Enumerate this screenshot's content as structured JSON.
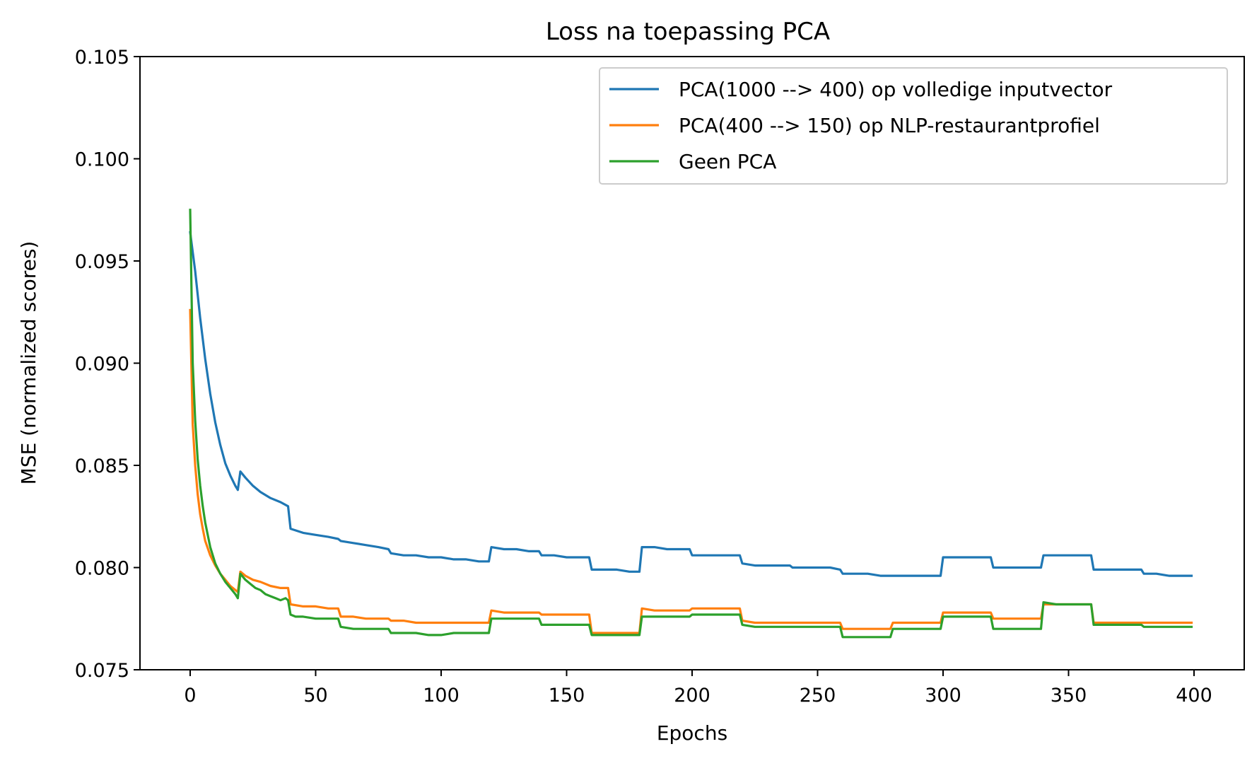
{
  "chart_data": {
    "type": "line",
    "title": "Loss na toepassing PCA",
    "xlabel": "Epochs",
    "ylabel": "MSE (normalized scores)",
    "xlim": [
      -20,
      420
    ],
    "ylim": [
      0.075,
      0.105
    ],
    "xticks": [
      0,
      50,
      100,
      150,
      200,
      250,
      300,
      350,
      400
    ],
    "yticks": [
      0.075,
      0.08,
      0.085,
      0.09,
      0.095,
      0.1,
      0.105
    ],
    "xtick_labels": [
      "0",
      "50",
      "100",
      "150",
      "200",
      "250",
      "300",
      "350",
      "400"
    ],
    "ytick_labels": [
      "0.075",
      "0.080",
      "0.085",
      "0.090",
      "0.095",
      "0.100",
      "0.105"
    ],
    "grid": false,
    "legend_position": "top-right",
    "series": [
      {
        "name": "PCA(1000 --> 400) op volledige inputvector",
        "color": "#1f77b4",
        "x": [
          0,
          2,
          4,
          6,
          8,
          10,
          12,
          14,
          16,
          18,
          19,
          20,
          22,
          25,
          28,
          32,
          36,
          39,
          40,
          45,
          50,
          55,
          59,
          60,
          65,
          70,
          75,
          79,
          80,
          85,
          90,
          95,
          100,
          105,
          110,
          115,
          119,
          120,
          125,
          130,
          135,
          139,
          140,
          145,
          150,
          155,
          159,
          160,
          165,
          170,
          175,
          179,
          180,
          185,
          190,
          195,
          199,
          200,
          205,
          210,
          215,
          219,
          220,
          225,
          230,
          235,
          239,
          240,
          245,
          250,
          255,
          259,
          260,
          265,
          270,
          275,
          280,
          285,
          290,
          295,
          299,
          300,
          305,
          310,
          315,
          319,
          320,
          325,
          330,
          335,
          339,
          340,
          345,
          350,
          355,
          359,
          360,
          365,
          370,
          375,
          379,
          380,
          385,
          390,
          395,
          399
        ],
        "y": [
          0.0964,
          0.0945,
          0.0922,
          0.0902,
          0.0885,
          0.0871,
          0.086,
          0.0851,
          0.0845,
          0.084,
          0.0838,
          0.0847,
          0.0844,
          0.084,
          0.0837,
          0.0834,
          0.0832,
          0.083,
          0.0819,
          0.0817,
          0.0816,
          0.0815,
          0.0814,
          0.0813,
          0.0812,
          0.0811,
          0.081,
          0.0809,
          0.0807,
          0.0806,
          0.0806,
          0.0805,
          0.0805,
          0.0804,
          0.0804,
          0.0803,
          0.0803,
          0.081,
          0.0809,
          0.0809,
          0.0808,
          0.0808,
          0.0806,
          0.0806,
          0.0805,
          0.0805,
          0.0805,
          0.0799,
          0.0799,
          0.0799,
          0.0798,
          0.0798,
          0.081,
          0.081,
          0.0809,
          0.0809,
          0.0809,
          0.0806,
          0.0806,
          0.0806,
          0.0806,
          0.0806,
          0.0802,
          0.0801,
          0.0801,
          0.0801,
          0.0801,
          0.08,
          0.08,
          0.08,
          0.08,
          0.0799,
          0.0797,
          0.0797,
          0.0797,
          0.0796,
          0.0796,
          0.0796,
          0.0796,
          0.0796,
          0.0796,
          0.0805,
          0.0805,
          0.0805,
          0.0805,
          0.0805,
          0.08,
          0.08,
          0.08,
          0.08,
          0.08,
          0.0806,
          0.0806,
          0.0806,
          0.0806,
          0.0806,
          0.0799,
          0.0799,
          0.0799,
          0.0799,
          0.0799,
          0.0797,
          0.0797,
          0.0796,
          0.0796,
          0.0796
        ]
      },
      {
        "name": "PCA(400 --> 150) op NLP-restaurantprofiel",
        "color": "#ff7f0e",
        "x": [
          0,
          1,
          2,
          3,
          4,
          5,
          6,
          8,
          10,
          12,
          14,
          16,
          18,
          19,
          20,
          22,
          25,
          28,
          32,
          36,
          39,
          40,
          45,
          50,
          55,
          59,
          60,
          65,
          70,
          75,
          79,
          80,
          85,
          90,
          95,
          100,
          105,
          110,
          115,
          119,
          120,
          125,
          130,
          135,
          139,
          140,
          145,
          150,
          155,
          159,
          160,
          165,
          170,
          175,
          179,
          180,
          185,
          190,
          195,
          199,
          200,
          205,
          210,
          215,
          219,
          220,
          225,
          230,
          235,
          239,
          240,
          245,
          250,
          255,
          259,
          260,
          265,
          270,
          275,
          279,
          280,
          285,
          290,
          295,
          299,
          300,
          305,
          310,
          315,
          319,
          320,
          325,
          330,
          335,
          339,
          340,
          345,
          350,
          355,
          359,
          360,
          365,
          370,
          375,
          379,
          380,
          385,
          390,
          395,
          399
        ],
        "y": [
          0.0926,
          0.087,
          0.085,
          0.0836,
          0.0826,
          0.0819,
          0.0813,
          0.0806,
          0.0801,
          0.0797,
          0.0794,
          0.0791,
          0.0789,
          0.0788,
          0.0798,
          0.0796,
          0.0794,
          0.0793,
          0.0791,
          0.079,
          0.079,
          0.0782,
          0.0781,
          0.0781,
          0.078,
          0.078,
          0.0776,
          0.0776,
          0.0775,
          0.0775,
          0.0775,
          0.0774,
          0.0774,
          0.0773,
          0.0773,
          0.0773,
          0.0773,
          0.0773,
          0.0773,
          0.0773,
          0.0779,
          0.0778,
          0.0778,
          0.0778,
          0.0778,
          0.0777,
          0.0777,
          0.0777,
          0.0777,
          0.0777,
          0.0768,
          0.0768,
          0.0768,
          0.0768,
          0.0768,
          0.078,
          0.0779,
          0.0779,
          0.0779,
          0.0779,
          0.078,
          0.078,
          0.078,
          0.078,
          0.078,
          0.0774,
          0.0773,
          0.0773,
          0.0773,
          0.0773,
          0.0773,
          0.0773,
          0.0773,
          0.0773,
          0.0773,
          0.077,
          0.077,
          0.077,
          0.077,
          0.077,
          0.0773,
          0.0773,
          0.0773,
          0.0773,
          0.0773,
          0.0778,
          0.0778,
          0.0778,
          0.0778,
          0.0778,
          0.0775,
          0.0775,
          0.0775,
          0.0775,
          0.0775,
          0.0782,
          0.0782,
          0.0782,
          0.0782,
          0.0782,
          0.0773,
          0.0773,
          0.0773,
          0.0773,
          0.0773,
          0.0773,
          0.0773,
          0.0773,
          0.0773,
          0.0773
        ]
      },
      {
        "name": "Geen PCA",
        "color": "#2ca02c",
        "x": [
          0,
          1,
          2,
          3,
          4,
          5,
          6,
          8,
          10,
          12,
          14,
          16,
          18,
          19,
          20,
          22,
          24,
          26,
          28,
          30,
          32,
          34,
          36,
          38,
          39,
          40,
          42,
          45,
          50,
          55,
          59,
          60,
          65,
          70,
          75,
          79,
          80,
          85,
          90,
          95,
          100,
          105,
          110,
          115,
          119,
          120,
          125,
          130,
          135,
          139,
          140,
          145,
          150,
          155,
          159,
          160,
          165,
          170,
          175,
          179,
          180,
          185,
          190,
          195,
          199,
          200,
          205,
          210,
          215,
          219,
          220,
          225,
          230,
          235,
          239,
          240,
          245,
          250,
          255,
          259,
          260,
          265,
          270,
          275,
          279,
          280,
          285,
          290,
          295,
          299,
          300,
          305,
          310,
          315,
          319,
          320,
          325,
          330,
          335,
          339,
          340,
          345,
          350,
          355,
          359,
          360,
          365,
          370,
          375,
          379,
          380,
          385,
          390,
          395,
          399
        ],
        "y": [
          0.0975,
          0.09,
          0.0872,
          0.0853,
          0.084,
          0.083,
          0.0822,
          0.081,
          0.0802,
          0.0797,
          0.0793,
          0.079,
          0.0787,
          0.0785,
          0.0797,
          0.0794,
          0.0792,
          0.079,
          0.0789,
          0.0787,
          0.0786,
          0.0785,
          0.0784,
          0.0785,
          0.0784,
          0.0777,
          0.0776,
          0.0776,
          0.0775,
          0.0775,
          0.0775,
          0.0771,
          0.077,
          0.077,
          0.077,
          0.077,
          0.0768,
          0.0768,
          0.0768,
          0.0767,
          0.0767,
          0.0768,
          0.0768,
          0.0768,
          0.0768,
          0.0775,
          0.0775,
          0.0775,
          0.0775,
          0.0775,
          0.0772,
          0.0772,
          0.0772,
          0.0772,
          0.0772,
          0.0767,
          0.0767,
          0.0767,
          0.0767,
          0.0767,
          0.0776,
          0.0776,
          0.0776,
          0.0776,
          0.0776,
          0.0777,
          0.0777,
          0.0777,
          0.0777,
          0.0777,
          0.0772,
          0.0771,
          0.0771,
          0.0771,
          0.0771,
          0.0771,
          0.0771,
          0.0771,
          0.0771,
          0.0771,
          0.0766,
          0.0766,
          0.0766,
          0.0766,
          0.0766,
          0.077,
          0.077,
          0.077,
          0.077,
          0.077,
          0.0776,
          0.0776,
          0.0776,
          0.0776,
          0.0776,
          0.077,
          0.077,
          0.077,
          0.077,
          0.077,
          0.0783,
          0.0782,
          0.0782,
          0.0782,
          0.0782,
          0.0772,
          0.0772,
          0.0772,
          0.0772,
          0.0772,
          0.0771,
          0.0771,
          0.0771,
          0.0771,
          0.0771
        ]
      }
    ]
  }
}
